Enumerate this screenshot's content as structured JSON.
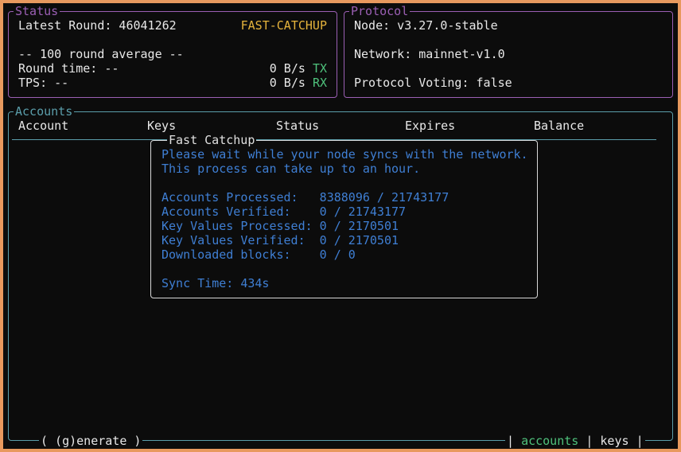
{
  "status": {
    "title": "Status",
    "latest_round": "Latest Round: 46041262",
    "state": "FAST-CATCHUP",
    "average_header": "-- 100 round average --",
    "round_time": "Round time: --",
    "tps": "TPS: --",
    "tx_rate": "0 B/s",
    "tx_label": "TX",
    "rx_rate": "0 B/s",
    "rx_label": "RX"
  },
  "protocol": {
    "title": "Protocol",
    "node": "Node: v3.27.0-stable",
    "network": "Network: mainnet-v1.0",
    "voting": "Protocol Voting: false"
  },
  "accounts": {
    "title": "Accounts",
    "columns": [
      "Account",
      "Keys",
      "Status",
      "Expires",
      "Balance"
    ],
    "generate": "( (g)enerate )",
    "tabs": {
      "accounts": "accounts",
      "keys": "keys",
      "sep": "|"
    }
  },
  "catchup": {
    "title": "Fast Catchup",
    "message1": "Please wait while your node syncs with the network.",
    "message2": "This process can take up to an hour.",
    "accounts_processed": "Accounts Processed:   8388096 / 21743177",
    "accounts_verified": "Accounts Verified:    0 / 21743177",
    "kv_processed": "Key Values Processed: 0 / 2170501",
    "kv_verified": "Key Values Verified:  0 / 2170501",
    "blocks": "Downloaded blocks:    0 / 0",
    "sync_time": "Sync Time: 434s"
  },
  "colors": {
    "status_border": "#9b5fb4",
    "accounts_border": "#5b9eab",
    "catchup_text": "#3f7fd4",
    "state": "#e5b33c",
    "active_tab": "#4fc27c",
    "frame": "#e8995e"
  }
}
